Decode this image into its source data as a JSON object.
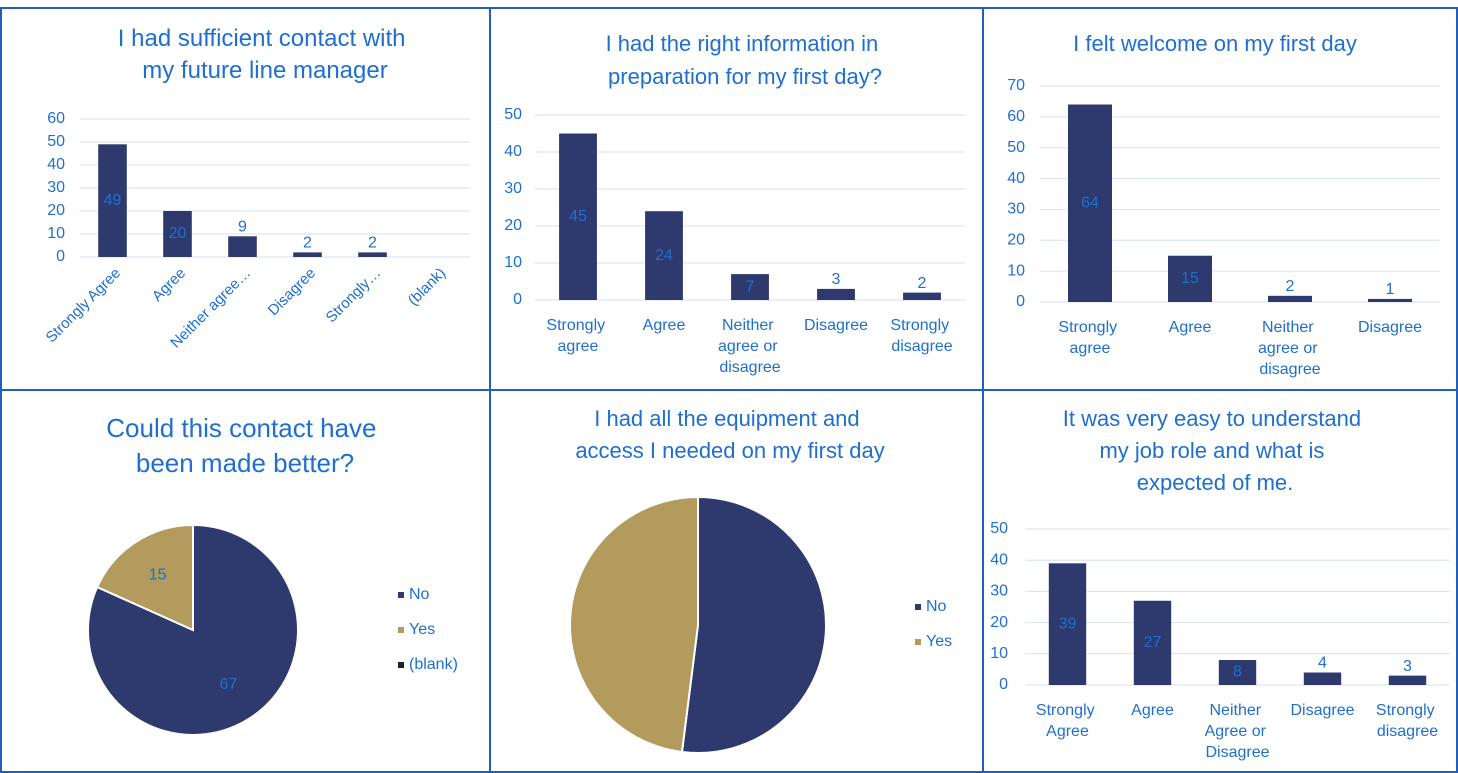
{
  "chart_data": [
    {
      "type": "bar",
      "title": "I had sufficient contact with my future line manager",
      "categories": [
        "Strongly Agree",
        "Agree",
        "Neither agree…",
        "Disagree",
        "Strongly…",
        "(blank)"
      ],
      "values": [
        49,
        20,
        9,
        2,
        2,
        null
      ],
      "color": "#2e3a6e",
      "ylim": [
        0,
        60
      ],
      "yticks": [
        0,
        10,
        20,
        30,
        40,
        50,
        60
      ],
      "grid": true,
      "rotated_labels": true
    },
    {
      "type": "bar",
      "title": "I had the right information  in preparation for my first day?",
      "categories": [
        "Strongly agree",
        "Agree",
        "Neither agree or disagree",
        "Disagree",
        "Strongly disagree"
      ],
      "values": [
        45,
        24,
        7,
        3,
        2
      ],
      "color": "#2e3a6e",
      "ylim": [
        0,
        50
      ],
      "yticks": [
        0,
        10,
        20,
        30,
        40,
        50
      ],
      "grid": true
    },
    {
      "type": "bar",
      "title": "I felt welcome on my first day",
      "categories": [
        "Strongly agree",
        "Agree",
        "Neither agree or disagree",
        "Disagree"
      ],
      "values": [
        64,
        15,
        2,
        1
      ],
      "color": "#2e3a6e",
      "ylim": [
        0,
        70
      ],
      "yticks": [
        0,
        10,
        20,
        30,
        40,
        50,
        60,
        70
      ],
      "grid": true
    },
    {
      "type": "pie",
      "title": "Could this contact have been made better?",
      "categories": [
        "No",
        "Yes",
        "(blank)"
      ],
      "values": [
        67,
        15,
        null
      ],
      "colors": [
        "#2e3a6e",
        "#b39b5e",
        "#222222"
      ],
      "legend": "right",
      "show_values": true
    },
    {
      "type": "pie",
      "title": "I had all the equipment and access I needed on my first day",
      "categories": [
        "No",
        "Yes"
      ],
      "values": [
        52,
        48
      ],
      "colors": [
        "#2e3a6e",
        "#b39b5e"
      ],
      "legend": "right",
      "show_values": false
    },
    {
      "type": "bar",
      "title": "It was very easy to understand my job role and what is expected of me.",
      "categories": [
        "Strongly Agree",
        "Agree",
        "Neither Agree or Disagree",
        "Disagree",
        "Strongly disagree"
      ],
      "values": [
        39,
        27,
        8,
        4,
        3
      ],
      "color": "#2e3a6e",
      "ylim": [
        0,
        50
      ],
      "yticks": [
        0,
        10,
        20,
        30,
        40,
        50
      ],
      "grid": true
    }
  ]
}
